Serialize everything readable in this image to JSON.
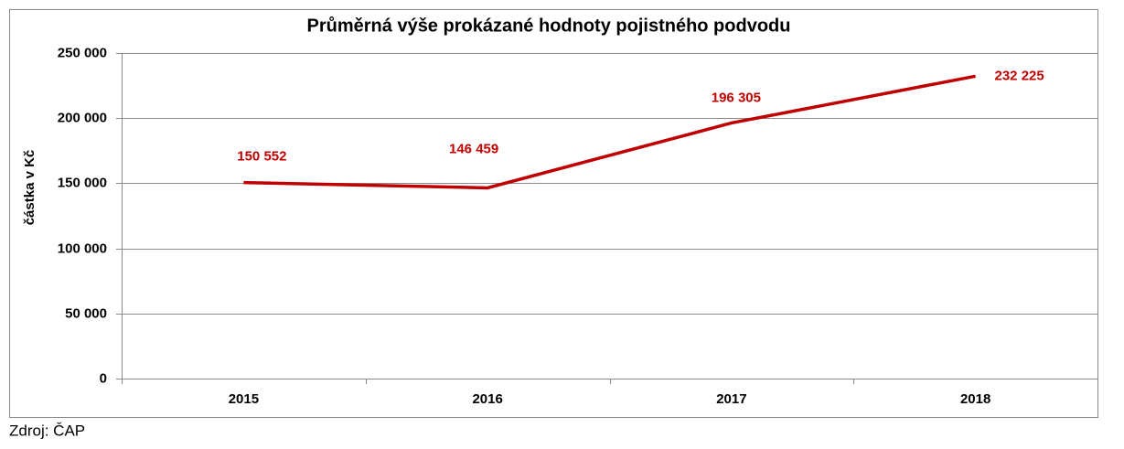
{
  "chart_data": {
    "type": "line",
    "title": "Průměrná výše prokázané hodnoty pojistného podvodu",
    "y_label": "částka v Kč",
    "source": "Zdroj: ČAP",
    "categories": [
      "2015",
      "2016",
      "2017",
      "2018"
    ],
    "values": [
      150552,
      146459,
      196305,
      232225
    ],
    "value_labels": [
      "150 552",
      "146 459",
      "196 305",
      "232 225"
    ],
    "color": "#c00000",
    "ylim": [
      0,
      250000
    ],
    "yticks": [
      0,
      {
        "value": 50000,
        "label": "50 000"
      },
      {
        "value": 100000,
        "label": "100 000"
      },
      {
        "value": 150000,
        "label": "150 000"
      },
      {
        "value": 200000,
        "label": "200 000"
      },
      {
        "value": 250000,
        "label": "250 000"
      }
    ],
    "grid": true
  }
}
